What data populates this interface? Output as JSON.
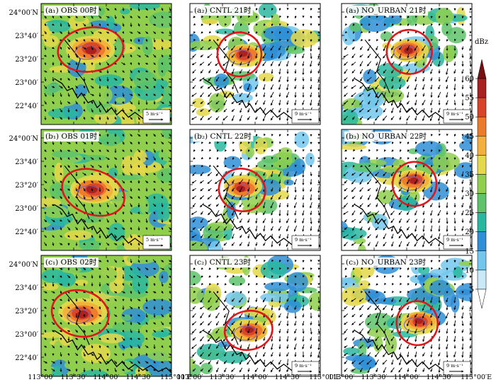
{
  "colorbar": {
    "unit": "dBz",
    "ticks": [
      "5",
      "10",
      "15",
      "20",
      "25",
      "30",
      "35",
      "40",
      "45",
      "50",
      "55",
      "60"
    ],
    "colors": [
      "#ffffff",
      "#c8eaf8",
      "#74c7ec",
      "#2f8fd6",
      "#2ab7a0",
      "#5ec36a",
      "#8fcf4d",
      "#e5d84a",
      "#f3b03a",
      "#ec7a2c",
      "#d9432a",
      "#a8201f",
      "#7a0f12"
    ]
  },
  "axes": {
    "y_ticks": [
      "24°00′N",
      "23°40′",
      "23°20′",
      "23°00′",
      "22°40′"
    ],
    "x_ticks": [
      "113°00′",
      "113°30′",
      "114°00′",
      "114°30′",
      "115°00′E"
    ]
  },
  "wind_ref": "5 m·s⁻¹",
  "wind_ref_model": "9 m·s⁻¹",
  "panels": [
    {
      "label": "(a₁) OBS 00时",
      "kind": "obs",
      "ref": "5 m·s⁻¹",
      "storm": [
        0.38,
        0.38
      ],
      "ellipse": [
        0.38,
        0.38,
        0.48,
        0.26,
        -8
      ]
    },
    {
      "label": "(a₂) CNTL 21时",
      "kind": "model",
      "ref": "9 m·s⁻¹",
      "storm": [
        0.42,
        0.42
      ],
      "ellipse": [
        0.38,
        0.42,
        0.32,
        0.26,
        25
      ]
    },
    {
      "label": "(a₃) NO_URBAN 21时",
      "kind": "model",
      "ref": "9 m·s⁻¹",
      "storm": [
        0.52,
        0.38
      ],
      "ellipse": [
        0.52,
        0.4,
        0.33,
        0.26,
        10
      ]
    },
    {
      "label": "(b₁) OBS 01时",
      "kind": "obs",
      "ref": "5 m·s⁻¹",
      "storm": [
        0.4,
        0.5
      ],
      "ellipse": [
        0.4,
        0.52,
        0.47,
        0.26,
        20
      ]
    },
    {
      "label": "(b₂) CNTL 22时",
      "kind": "model",
      "ref": "9 m·s⁻¹",
      "storm": [
        0.4,
        0.48
      ],
      "ellipse": [
        0.4,
        0.5,
        0.34,
        0.25,
        15
      ]
    },
    {
      "label": "(b₃) NO_URBAN 22时",
      "kind": "model",
      "ref": "9 m·s⁻¹",
      "storm": [
        0.56,
        0.42
      ],
      "ellipse": [
        0.56,
        0.45,
        0.32,
        0.26,
        5
      ]
    },
    {
      "label": "(c₁) OBS 02时",
      "kind": "obs",
      "ref": "",
      "storm": [
        0.32,
        0.48
      ],
      "ellipse": [
        0.3,
        0.48,
        0.42,
        0.27,
        15
      ]
    },
    {
      "label": "(c₂) CNTL 23时",
      "kind": "model",
      "ref": "9 m·s⁻¹",
      "storm": [
        0.46,
        0.62
      ],
      "ellipse": [
        0.45,
        0.62,
        0.35,
        0.23,
        -10
      ]
    },
    {
      "label": "(c₃) NO_URBAN 23时",
      "kind": "model",
      "ref": "9 m·s⁻¹",
      "storm": [
        0.6,
        0.55
      ],
      "ellipse": [
        0.58,
        0.56,
        0.3,
        0.26,
        -5
      ]
    }
  ]
}
